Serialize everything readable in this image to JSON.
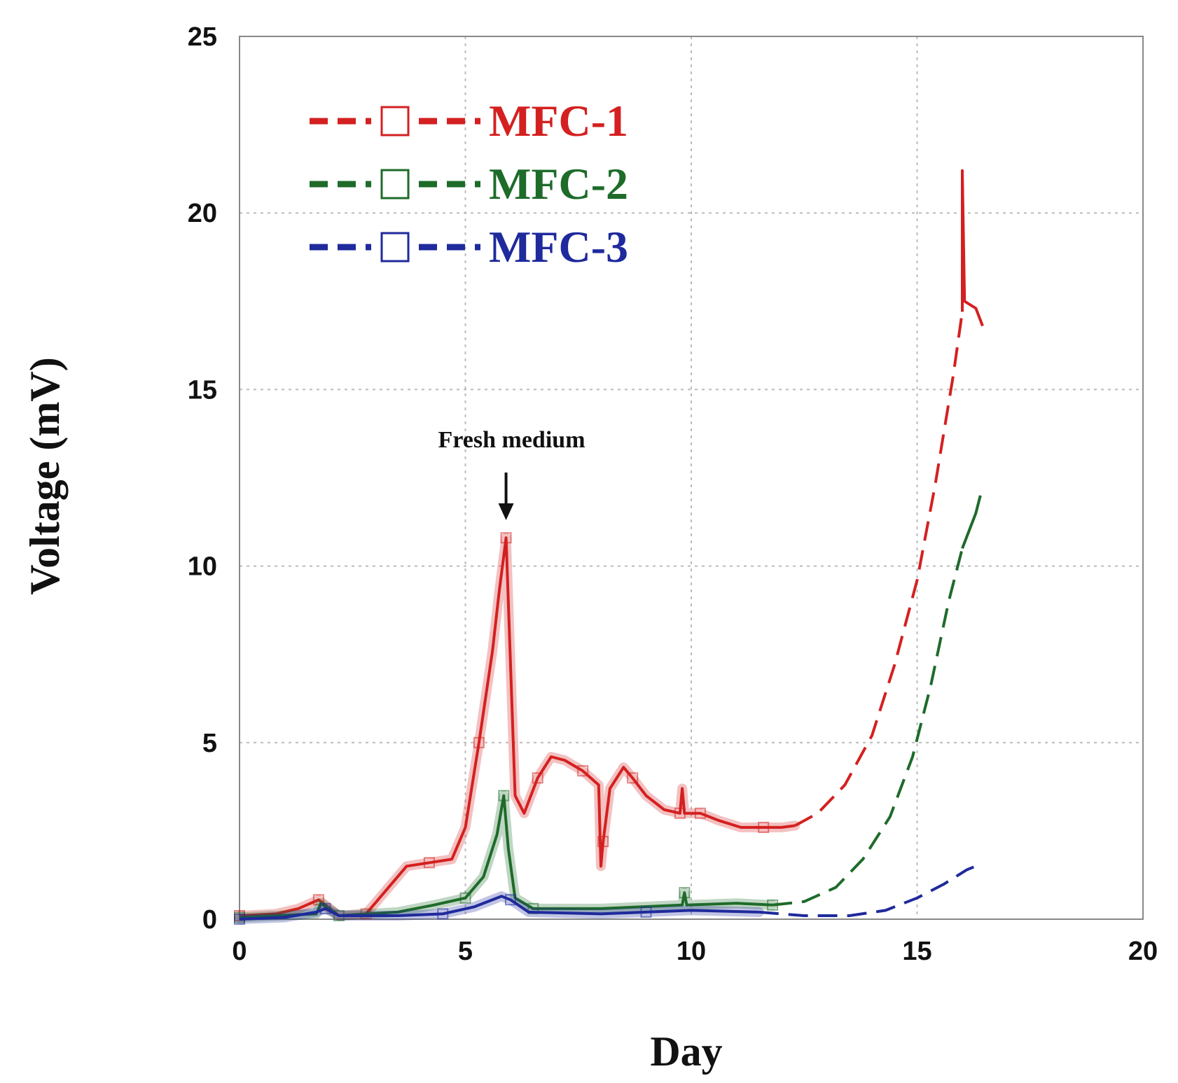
{
  "chart_data": {
    "type": "line",
    "title": "",
    "xlabel": "Day",
    "ylabel": "Voltage (mV)",
    "xlim": [
      0,
      20
    ],
    "ylim": [
      0,
      25
    ],
    "xticks": [
      0,
      5,
      10,
      15,
      20
    ],
    "yticks": [
      0,
      5,
      10,
      15,
      20,
      25
    ],
    "grid": true,
    "legend_position": "top-left",
    "annotation": {
      "text": "Fresh medium",
      "x": 5.9,
      "y": 11.3
    },
    "series": [
      {
        "name": "MFC-1",
        "color": "#d42020",
        "measured": [
          [
            0,
            0.1
          ],
          [
            0.8,
            0.15
          ],
          [
            1.3,
            0.3
          ],
          [
            1.75,
            0.55
          ],
          [
            1.9,
            0.4
          ],
          [
            2.2,
            0.1
          ],
          [
            2.8,
            0.15
          ],
          [
            3.3,
            0.9
          ],
          [
            3.7,
            1.5
          ],
          [
            4.2,
            1.6
          ],
          [
            4.7,
            1.7
          ],
          [
            5.0,
            2.6
          ],
          [
            5.3,
            5.0
          ],
          [
            5.6,
            7.6
          ],
          [
            5.75,
            9.3
          ],
          [
            5.9,
            10.8
          ],
          [
            6.1,
            3.5
          ],
          [
            6.3,
            3.0
          ],
          [
            6.6,
            4.0
          ],
          [
            6.9,
            4.6
          ],
          [
            7.2,
            4.5
          ],
          [
            7.6,
            4.2
          ],
          [
            7.95,
            3.8
          ],
          [
            8.0,
            1.5
          ],
          [
            8.05,
            2.2
          ],
          [
            8.2,
            3.7
          ],
          [
            8.5,
            4.3
          ],
          [
            8.7,
            4.0
          ],
          [
            9.0,
            3.5
          ],
          [
            9.4,
            3.1
          ],
          [
            9.75,
            3.0
          ],
          [
            9.8,
            3.7
          ],
          [
            9.85,
            3.0
          ],
          [
            10.2,
            3.0
          ],
          [
            10.6,
            2.8
          ],
          [
            11.1,
            2.6
          ],
          [
            11.6,
            2.6
          ],
          [
            12.0,
            2.6
          ],
          [
            12.3,
            2.65
          ]
        ],
        "fitted": [
          [
            12.3,
            2.65
          ],
          [
            12.8,
            3.0
          ],
          [
            13.4,
            3.8
          ],
          [
            14.0,
            5.2
          ],
          [
            14.5,
            7.2
          ],
          [
            15.0,
            9.6
          ],
          [
            15.4,
            12.3
          ],
          [
            15.8,
            15.4
          ],
          [
            16.0,
            17.2
          ]
        ],
        "tail": [
          [
            16.0,
            17.2
          ],
          [
            16.0,
            21.2
          ],
          [
            16.05,
            17.5
          ],
          [
            16.3,
            17.3
          ],
          [
            16.45,
            16.8
          ]
        ]
      },
      {
        "name": "MFC-2",
        "color": "#1e6b2a",
        "measured": [
          [
            0,
            0.05
          ],
          [
            1.7,
            0.15
          ],
          [
            1.8,
            0.45
          ],
          [
            2.2,
            0.1
          ],
          [
            3.5,
            0.2
          ],
          [
            4.3,
            0.4
          ],
          [
            5.0,
            0.6
          ],
          [
            5.4,
            1.2
          ],
          [
            5.7,
            2.4
          ],
          [
            5.85,
            3.5
          ],
          [
            5.95,
            2.0
          ],
          [
            6.1,
            0.6
          ],
          [
            6.5,
            0.3
          ],
          [
            8.0,
            0.3
          ],
          [
            9.8,
            0.4
          ],
          [
            9.85,
            0.75
          ],
          [
            9.9,
            0.4
          ],
          [
            11.0,
            0.45
          ],
          [
            11.8,
            0.4
          ]
        ],
        "fitted": [
          [
            11.8,
            0.4
          ],
          [
            12.5,
            0.5
          ],
          [
            13.2,
            0.9
          ],
          [
            13.8,
            1.7
          ],
          [
            14.4,
            2.9
          ],
          [
            14.9,
            4.6
          ],
          [
            15.3,
            6.6
          ],
          [
            15.7,
            9.0
          ],
          [
            16.0,
            10.5
          ]
        ],
        "tail": [
          [
            16.0,
            10.5
          ],
          [
            16.3,
            11.5
          ],
          [
            16.4,
            12.0
          ]
        ]
      },
      {
        "name": "MFC-3",
        "color": "#1f2a9c",
        "measured": [
          [
            0,
            0.0
          ],
          [
            1.0,
            0.05
          ],
          [
            1.7,
            0.2
          ],
          [
            1.9,
            0.3
          ],
          [
            2.2,
            0.1
          ],
          [
            3.5,
            0.1
          ],
          [
            4.5,
            0.15
          ],
          [
            5.2,
            0.35
          ],
          [
            5.8,
            0.65
          ],
          [
            6.0,
            0.55
          ],
          [
            6.4,
            0.2
          ],
          [
            8.0,
            0.15
          ],
          [
            9.0,
            0.2
          ],
          [
            10.0,
            0.25
          ],
          [
            11.5,
            0.2
          ]
        ],
        "fitted": [
          [
            11.5,
            0.2
          ],
          [
            12.5,
            0.1
          ],
          [
            13.5,
            0.1
          ],
          [
            14.3,
            0.25
          ],
          [
            15.0,
            0.6
          ],
          [
            15.6,
            1.0
          ],
          [
            16.1,
            1.4
          ],
          [
            16.3,
            1.5
          ]
        ],
        "tail": []
      }
    ]
  }
}
